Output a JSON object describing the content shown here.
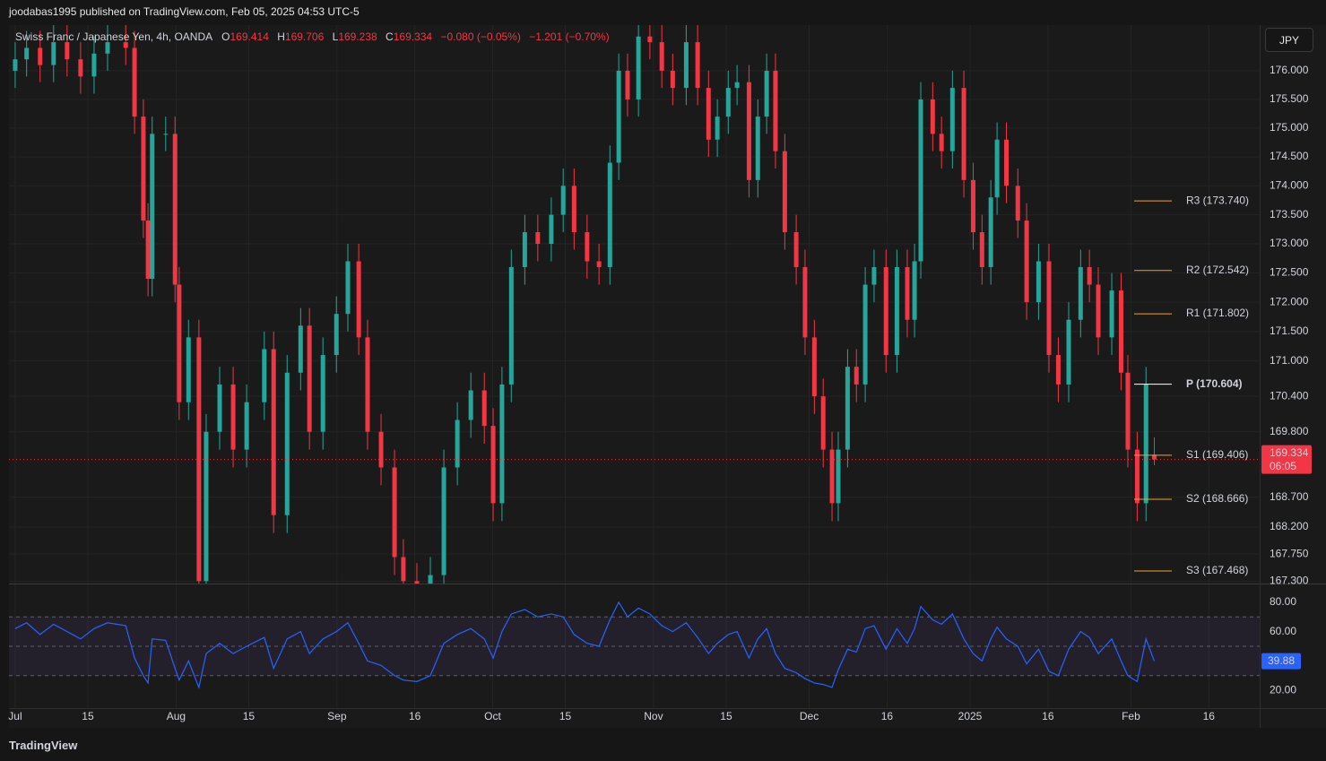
{
  "header": {
    "published": "joodabas1995 published on TradingView.com, Feb 05, 2025 04:53 UTC-5",
    "currency": "JPY"
  },
  "footer": {
    "brand": "TradingView"
  },
  "chart_data": [
    {
      "type": "candlestick",
      "symbol": "Swiss Franc / Japanese Yen, 4h, OANDA",
      "ohlc_labels": [
        "O",
        "H",
        "L",
        "C"
      ],
      "change_labels": [
        "−0.080 (−0.05%)",
        "−1.201 (−0.70%)"
      ],
      "countdown": "06:05",
      "up_color": "#26a69a",
      "down_color": "#f23645",
      "log_scale": true,
      "grid": true,
      "xlim": [
        -1.2,
        239.8
      ],
      "xticks": [
        {
          "value": 0,
          "label": "Jul"
        },
        {
          "value": 14,
          "label": "15"
        },
        {
          "value": 31,
          "label": "Aug"
        },
        {
          "value": 45,
          "label": "15"
        },
        {
          "value": 62,
          "label": "Sep"
        },
        {
          "value": 77,
          "label": "16"
        },
        {
          "value": 92,
          "label": "Oct"
        },
        {
          "value": 106,
          "label": "15"
        },
        {
          "value": 123,
          "label": "Nov"
        },
        {
          "value": 137,
          "label": "15"
        },
        {
          "value": 153,
          "label": "Dec"
        },
        {
          "value": 168,
          "label": "16"
        },
        {
          "value": 184,
          "label": "2025"
        },
        {
          "value": 199,
          "label": "16"
        },
        {
          "value": 215,
          "label": "Feb"
        },
        {
          "value": 230,
          "label": "16"
        }
      ],
      "ylim": [
        167.26,
        176.8
      ],
      "yticks": [
        {
          "value": 176,
          "label": "176.000"
        },
        {
          "value": 175.5,
          "label": "175.500"
        },
        {
          "value": 175,
          "label": "175.000"
        },
        {
          "value": 174.5,
          "label": "174.500"
        },
        {
          "value": 174,
          "label": "174.000"
        },
        {
          "value": 173.5,
          "label": "173.500"
        },
        {
          "value": 173,
          "label": "173.000"
        },
        {
          "value": 172.5,
          "label": "172.500"
        },
        {
          "value": 172,
          "label": "172.000"
        },
        {
          "value": 171.5,
          "label": "171.500"
        },
        {
          "value": 171,
          "label": "171.000"
        },
        {
          "value": 170.4,
          "label": "170.400"
        },
        {
          "value": 169.8,
          "label": "169.800"
        },
        {
          "value": 168.7,
          "label": "168.700"
        },
        {
          "value": 168.2,
          "label": "168.200"
        },
        {
          "value": 167.75,
          "label": "167.750"
        },
        {
          "value": 167.3,
          "label": "167.300"
        }
      ],
      "pivots": {
        "values": [
          173.74,
          172.542,
          171.802,
          170.604,
          169.406,
          168.666,
          167.468
        ],
        "value_labels": [
          "R3 (173.740)",
          "R2 (172.542)",
          "R1 (171.802)",
          "P (170.604)",
          "S1 (169.406)",
          "S2 (168.666)",
          "S3 (167.468)"
        ],
        "colors": [
          "#f0a030",
          "#f0a030",
          "#f0a030",
          "#ffffff",
          "#f0a030",
          "#f0a030",
          "#f0a030"
        ]
      },
      "x": [
        0.0,
        2.2,
        4.8,
        7.4,
        10.0,
        12.6,
        15.2,
        17.8,
        21.3,
        23.0,
        24.7,
        25.6,
        26.4,
        29.0,
        30.8,
        31.6,
        33.4,
        35.4,
        36.8,
        39.4,
        42.0,
        44.6,
        48.0,
        49.8,
        52.4,
        55.0,
        56.7,
        59.3,
        61.9,
        64.1,
        66.2,
        67.9,
        70.5,
        73.1,
        74.8,
        77.4,
        80.0,
        82.6,
        85.2,
        87.8,
        90.4,
        92.1,
        93.8,
        95.6,
        98.2,
        100.7,
        103.3,
        105.6,
        107.7,
        110.2,
        112.5,
        114.6,
        116.3,
        118.0,
        120.1,
        122.3,
        124.6,
        126.7,
        129.3,
        131.5,
        133.6,
        135.3,
        137.4,
        139.1,
        141.4,
        143.1,
        144.8,
        146.5,
        148.3,
        150.5,
        152.2,
        154.0,
        155.7,
        157.4,
        158.6,
        160.4,
        162.1,
        163.8,
        165.5,
        167.8,
        169.9,
        171.9,
        173.3,
        174.5,
        176.8,
        178.5,
        180.6,
        182.8,
        184.6,
        186.3,
        188.0,
        189.2,
        191.0,
        193.2,
        194.9,
        197.2,
        199.2,
        201.0,
        203.0,
        205.3,
        207.0,
        208.7,
        211.3,
        213.1,
        214.4,
        216.2,
        217.9,
        219.5
      ],
      "open": [
        176.0,
        176.2,
        176.4,
        176.1,
        176.5,
        176.2,
        175.9,
        176.3,
        176.5,
        176.4,
        175.2,
        173.4,
        172.4,
        174.9,
        174.9,
        172.3,
        170.3,
        171.4,
        167.3,
        169.8,
        170.6,
        169.5,
        170.3,
        171.2,
        168.4,
        170.8,
        171.6,
        169.8,
        171.1,
        171.8,
        172.7,
        171.4,
        169.8,
        169.2,
        167.7,
        167.3,
        167.2,
        167.4,
        169.2,
        170.0,
        170.5,
        169.9,
        168.6,
        170.6,
        172.6,
        173.2,
        173.0,
        173.5,
        174.0,
        173.2,
        172.7,
        172.6,
        174.4,
        176.0,
        175.5,
        176.6,
        176.5,
        176.0,
        175.7,
        176.5,
        175.7,
        174.8,
        175.2,
        175.7,
        175.8,
        174.1,
        175.2,
        176.0,
        174.6,
        173.2,
        172.6,
        171.4,
        170.4,
        169.5,
        168.6,
        169.5,
        170.9,
        170.6,
        172.3,
        172.6,
        171.1,
        172.6,
        171.7,
        172.7,
        175.5,
        174.9,
        174.6,
        175.7,
        174.1,
        173.2,
        172.6,
        173.8,
        174.8,
        174.0,
        173.4,
        172.0,
        172.7,
        171.1,
        170.6,
        171.7,
        172.6,
        172.3,
        171.4,
        172.2,
        170.8,
        169.5,
        168.6,
        169.414
      ],
      "high": [
        176.5,
        176.7,
        176.7,
        176.8,
        176.8,
        176.5,
        176.6,
        176.8,
        176.8,
        176.7,
        175.5,
        173.7,
        175.2,
        175.2,
        175.2,
        172.6,
        171.7,
        171.7,
        170.1,
        170.9,
        170.9,
        170.6,
        171.5,
        171.5,
        171.1,
        171.9,
        171.9,
        171.4,
        172.1,
        173.0,
        173.0,
        171.7,
        170.1,
        169.5,
        168.0,
        167.6,
        167.7,
        169.5,
        170.3,
        170.8,
        170.8,
        170.2,
        170.9,
        172.9,
        173.5,
        173.5,
        173.8,
        174.3,
        174.3,
        173.5,
        173.0,
        174.7,
        176.3,
        176.3,
        176.9,
        176.9,
        176.8,
        176.3,
        176.8,
        176.8,
        176.0,
        175.5,
        176.0,
        176.1,
        176.1,
        175.5,
        176.3,
        176.3,
        174.9,
        173.5,
        172.9,
        171.7,
        170.7,
        169.8,
        169.8,
        171.2,
        171.2,
        172.6,
        172.9,
        172.9,
        172.9,
        172.9,
        173.0,
        175.8,
        175.8,
        175.2,
        176.0,
        176.0,
        174.4,
        173.5,
        174.1,
        175.1,
        175.1,
        174.3,
        173.7,
        173.0,
        173.0,
        171.4,
        172.0,
        172.9,
        172.9,
        172.6,
        172.5,
        172.5,
        171.1,
        169.8,
        170.9,
        169.706
      ],
      "low": [
        175.7,
        175.9,
        175.8,
        175.8,
        175.9,
        175.6,
        175.6,
        176.0,
        176.1,
        174.9,
        173.1,
        172.1,
        172.1,
        174.6,
        172.0,
        170.0,
        170.0,
        167.0,
        167.0,
        169.5,
        169.2,
        169.2,
        170.0,
        168.1,
        168.1,
        170.5,
        169.5,
        169.5,
        170.8,
        171.5,
        171.1,
        169.5,
        168.9,
        167.4,
        167.0,
        166.9,
        166.9,
        167.1,
        168.9,
        169.7,
        169.6,
        168.3,
        168.3,
        170.3,
        172.3,
        172.7,
        172.7,
        173.2,
        172.9,
        172.4,
        172.3,
        172.3,
        174.1,
        175.2,
        175.2,
        176.2,
        175.7,
        175.4,
        175.4,
        175.4,
        174.5,
        174.5,
        174.9,
        175.4,
        173.8,
        173.8,
        174.9,
        174.3,
        172.9,
        172.3,
        171.1,
        170.1,
        169.2,
        168.3,
        168.3,
        169.2,
        170.3,
        170.3,
        172.0,
        170.8,
        170.8,
        171.4,
        171.4,
        172.4,
        174.6,
        174.3,
        174.3,
        173.8,
        172.9,
        172.3,
        172.3,
        173.5,
        173.7,
        173.1,
        171.7,
        171.7,
        170.8,
        170.3,
        170.3,
        171.4,
        172.0,
        171.1,
        171.1,
        170.5,
        169.2,
        168.3,
        168.3,
        169.238
      ],
      "close": [
        176.2,
        176.4,
        176.1,
        176.5,
        176.2,
        175.9,
        176.3,
        176.5,
        176.4,
        175.2,
        173.4,
        172.4,
        174.9,
        174.9,
        172.3,
        170.3,
        171.4,
        167.3,
        169.8,
        170.6,
        169.5,
        170.3,
        171.2,
        168.4,
        170.8,
        171.6,
        169.8,
        171.1,
        171.8,
        172.7,
        171.4,
        169.8,
        169.2,
        167.7,
        167.3,
        167.2,
        167.4,
        169.2,
        170.0,
        170.5,
        169.9,
        168.6,
        170.6,
        172.6,
        173.2,
        173.0,
        173.5,
        174.0,
        173.2,
        172.7,
        172.6,
        174.4,
        176.0,
        175.5,
        176.6,
        176.5,
        176.0,
        175.7,
        176.5,
        175.7,
        174.8,
        175.2,
        175.7,
        175.8,
        174.1,
        175.2,
        176.0,
        174.6,
        173.2,
        172.6,
        171.4,
        170.4,
        169.5,
        168.6,
        169.5,
        170.9,
        170.6,
        172.3,
        172.6,
        171.1,
        172.6,
        171.7,
        172.7,
        175.5,
        174.9,
        174.6,
        175.7,
        174.1,
        173.2,
        172.6,
        173.8,
        174.8,
        174.0,
        173.4,
        172.0,
        172.7,
        171.1,
        170.6,
        171.7,
        172.6,
        172.3,
        171.4,
        172.2,
        170.8,
        169.5,
        168.6,
        170.6,
        169.334
      ]
    },
    {
      "type": "line",
      "color": "#2962ff",
      "band": [
        30,
        70
      ],
      "midline": 50,
      "band_color": "#7e57c2",
      "ylim": [
        7.9,
        92.1
      ],
      "yticks": [
        {
          "value": 80,
          "label": "80.00"
        },
        {
          "value": 60,
          "label": "60.00"
        },
        {
          "value": 20,
          "label": "20.00"
        }
      ],
      "values": [
        62,
        66,
        58,
        65,
        60,
        55,
        62,
        66,
        64,
        42,
        30,
        25,
        55,
        54,
        35,
        27,
        40,
        22,
        45,
        52,
        45,
        50,
        56,
        35,
        55,
        60,
        45,
        55,
        60,
        66,
        52,
        40,
        37,
        30,
        27,
        26,
        30,
        52,
        58,
        62,
        55,
        42,
        60,
        72,
        75,
        70,
        72,
        70,
        58,
        52,
        50,
        68,
        80,
        70,
        76,
        72,
        64,
        60,
        66,
        56,
        45,
        52,
        58,
        60,
        42,
        55,
        62,
        45,
        35,
        32,
        28,
        25,
        24,
        22,
        34,
        48,
        46,
        62,
        64,
        48,
        62,
        52,
        62,
        77,
        68,
        65,
        72,
        55,
        45,
        40,
        55,
        63,
        55,
        50,
        38,
        48,
        33,
        30,
        48,
        60,
        56,
        45,
        55,
        40,
        30,
        26,
        55,
        39.88
      ]
    }
  ]
}
